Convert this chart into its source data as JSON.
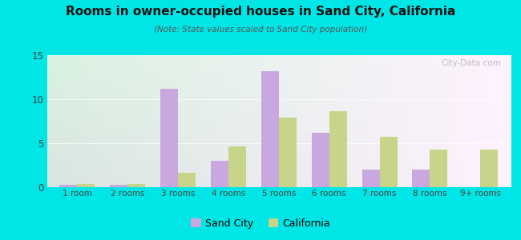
{
  "title": "Rooms in owner-occupied houses in Sand City, California",
  "subtitle": "(Note: State values scaled to Sand City population)",
  "categories": [
    "1 room",
    "2 rooms",
    "3 rooms",
    "4 rooms",
    "5 rooms",
    "6 rooms",
    "7 rooms",
    "8 rooms",
    "9+ rooms"
  ],
  "sand_city": [
    0.3,
    0.3,
    11.2,
    3.0,
    13.2,
    6.2,
    2.0,
    2.0,
    0.0
  ],
  "california": [
    0.4,
    0.4,
    1.6,
    4.6,
    7.9,
    8.6,
    5.7,
    4.3,
    4.3
  ],
  "sand_city_color": "#c9a8e0",
  "california_color": "#c8d48a",
  "background_outer": "#00e5e5",
  "ylim": [
    0,
    15
  ],
  "yticks": [
    0,
    5,
    10,
    15
  ],
  "bar_width": 0.35,
  "legend_sand_city": "Sand City",
  "legend_california": "California",
  "watermark": "City-Data.com"
}
